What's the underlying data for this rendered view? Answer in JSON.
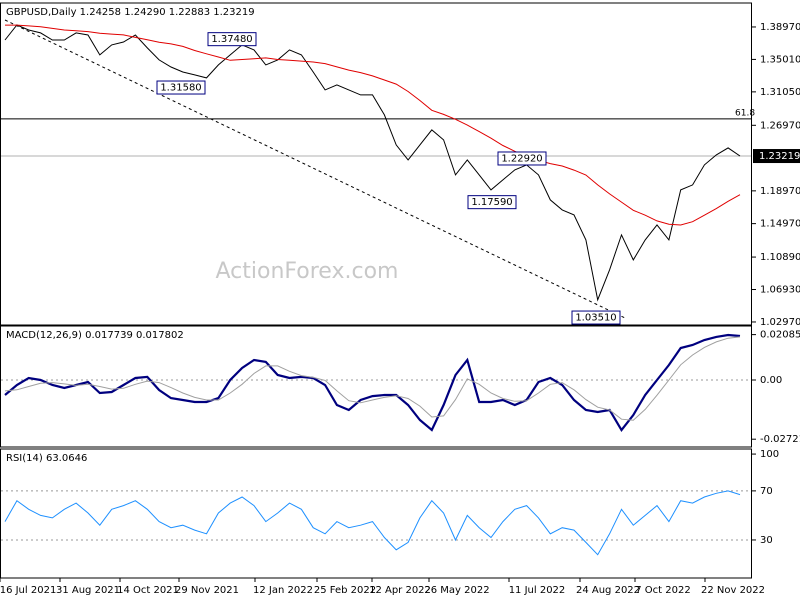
{
  "chart_data": [
    {
      "type": "line",
      "title": "GBPUSD,Daily  1.24258 1.24290 1.22883 1.23219",
      "watermark": "ActionForex.com",
      "ylim": [
        1.026,
        1.4165
      ],
      "yticks": [
        {
          "value": 1.3897,
          "label": "1.38970"
        },
        {
          "value": 1.3501,
          "label": "1.35010"
        },
        {
          "value": 1.3105,
          "label": "1.31050"
        },
        {
          "value": 1.2697,
          "label": "1.26970"
        },
        {
          "value": 1.1897,
          "label": "1.18970"
        },
        {
          "value": 1.1497,
          "label": "1.14970"
        },
        {
          "value": 1.1089,
          "label": "1.10890"
        },
        {
          "value": 1.0693,
          "label": "1.06930"
        },
        {
          "value": 1.0297,
          "label": "1.02970"
        }
      ],
      "series": [
        {
          "color": "#000000",
          "values": [
            1.3738,
            1.3921,
            1.386,
            1.3824,
            1.3738,
            1.3738,
            1.3824,
            1.3799,
            1.3556,
            1.3678,
            1.3714,
            1.3799,
            1.3641,
            1.3495,
            1.3409,
            1.3348,
            1.3312,
            1.3275,
            1.3434,
            1.3556,
            1.3678,
            1.3617,
            1.3434,
            1.3495,
            1.3617,
            1.3556,
            1.3348,
            1.3129,
            1.319,
            1.3129,
            1.3068,
            1.3068,
            1.2824,
            1.2458,
            1.2275,
            1.2458,
            1.2641,
            1.2519,
            1.2092,
            1.2275,
            1.2092,
            1.1909,
            1.2031,
            1.2153,
            1.2214,
            1.2092,
            1.1787,
            1.1665,
            1.1604,
            1.1299,
            1.0568,
            1.0934,
            1.136,
            1.1055,
            1.1299,
            1.1482,
            1.1299,
            1.1909,
            1.197,
            1.2214,
            1.2336,
            1.2421,
            1.2322
          ]
        },
        {
          "color": "#e00000",
          "values": [
            1.392,
            1.392,
            1.391,
            1.39,
            1.388,
            1.386,
            1.385,
            1.384,
            1.382,
            1.381,
            1.38,
            1.377,
            1.374,
            1.371,
            1.369,
            1.366,
            1.361,
            1.357,
            1.353,
            1.349,
            1.35,
            1.351,
            1.352,
            1.35,
            1.349,
            1.348,
            1.347,
            1.345,
            1.341,
            1.337,
            1.334,
            1.33,
            1.325,
            1.32,
            1.311,
            1.3,
            1.288,
            1.283,
            1.277,
            1.27,
            1.262,
            1.254,
            1.245,
            1.238,
            1.232,
            1.227,
            1.223,
            1.22,
            1.215,
            1.209,
            1.197,
            1.186,
            1.176,
            1.166,
            1.16,
            1.153,
            1.149,
            1.148,
            1.152,
            1.16,
            1.168,
            1.177,
            1.185
          ]
        }
      ],
      "annotations": [
        {
          "value": 1.3748,
          "label": "1.37480"
        },
        {
          "value": 1.3158,
          "label": "1.31580"
        },
        {
          "value": 1.2292,
          "label": "1.22920"
        },
        {
          "value": 1.1759,
          "label": "1.17590"
        },
        {
          "value": 1.0351,
          "label": "1.03510"
        }
      ],
      "fib_level": {
        "value": 1.2775,
        "label": "61.8"
      },
      "last_price": 1.23219
    },
    {
      "type": "line",
      "title": "MACD(12,26,9) 0.017739 0.017802",
      "ylim": [
        -0.0308,
        0.0239
      ],
      "yticks": [
        0.020858,
        {
          "value": 0,
          "label": "0.00"
        },
        -0.027213
      ],
      "levels": [
        0
      ],
      "series": [
        {
          "color": "#00007f",
          "values": [
            -0.0069,
            -0.0023,
            0.0009,
            0,
            -0.0023,
            -0.0037,
            -0.0023,
            -0.0009,
            -0.006,
            -0.0055,
            -0.0023,
            0.0009,
            0.0014,
            -0.0046,
            -0.0083,
            -0.0092,
            -0.0101,
            -0.0101,
            -0.0083,
            0,
            0.0055,
            0.0092,
            0.0083,
            0.0023,
            0.0009,
            0.0014,
            0.0009,
            -0.0023,
            -0.0115,
            -0.0138,
            -0.0092,
            -0.0074,
            -0.0069,
            -0.0069,
            -0.0115,
            -0.0184,
            -0.023,
            -0.0115,
            0.0023,
            0.0092,
            -0.0101,
            -0.0101,
            -0.0092,
            -0.0115,
            -0.0092,
            -0.0009,
            0.0009,
            -0.0023,
            -0.0092,
            -0.0138,
            -0.0147,
            -0.0138,
            -0.023,
            -0.0161,
            -0.0069,
            0,
            0.0069,
            0.0147,
            0.0161,
            0.0184,
            0.0198,
            0.0207,
            0.0202
          ]
        },
        {
          "color": "#a0a0a0",
          "values": [
            -0.005,
            -0.0045,
            -0.003,
            -0.0015,
            -0.0012,
            -0.0018,
            -0.0025,
            -0.002,
            -0.003,
            -0.0042,
            -0.0038,
            -0.002,
            -0.0005,
            -0.0012,
            -0.0035,
            -0.006,
            -0.008,
            -0.0092,
            -0.0092,
            -0.006,
            -0.002,
            0.003,
            0.0065,
            0.0065,
            0.004,
            0.002,
            0.0012,
            -0.0002,
            -0.005,
            -0.0095,
            -0.0105,
            -0.0092,
            -0.008,
            -0.0072,
            -0.0085,
            -0.012,
            -0.017,
            -0.0165,
            -0.009,
            0.0005,
            -0.002,
            -0.006,
            -0.0085,
            -0.0098,
            -0.0095,
            -0.006,
            -0.002,
            -0.0012,
            -0.0045,
            -0.009,
            -0.0125,
            -0.0138,
            -0.018,
            -0.0185,
            -0.0135,
            -0.007,
            0,
            0.007,
            0.0115,
            0.015,
            0.0175,
            0.0192,
            0.0198
          ]
        }
      ]
    },
    {
      "type": "line",
      "title": "RSI(14) 63.0646",
      "ylim": [
        -1,
        102.5
      ],
      "yticks": [
        100,
        70,
        30
      ],
      "levels": [
        70,
        30
      ],
      "series": [
        {
          "color": "#1e90ff",
          "values": [
            45,
            62,
            55,
            50,
            48,
            55,
            60,
            52,
            42,
            55,
            58,
            62,
            55,
            45,
            40,
            42,
            38,
            35,
            52,
            60,
            65,
            58,
            45,
            52,
            60,
            55,
            40,
            35,
            45,
            40,
            42,
            45,
            32,
            22,
            28,
            48,
            62,
            52,
            30,
            50,
            40,
            32,
            45,
            55,
            58,
            48,
            35,
            40,
            38,
            28,
            18,
            35,
            55,
            42,
            50,
            58,
            45,
            62,
            60,
            65,
            68,
            70,
            67
          ]
        }
      ]
    }
  ],
  "x_labels": [
    "16 Jul 2021",
    "31 Aug 2021",
    "14 Oct 2021",
    "29 Nov 2021",
    "12 Jan 2022",
    "25 Feb 2022",
    "12 Apr 2022",
    "26 May 2022",
    "11 Jul 2022",
    "24 Aug 2022",
    "7 Oct 2022",
    "22 Nov 2022"
  ]
}
